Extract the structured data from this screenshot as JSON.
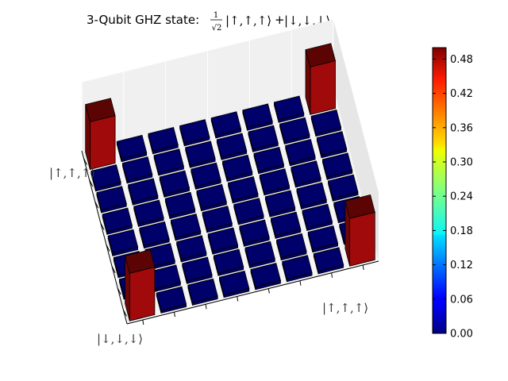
{
  "chart_data": {
    "type": "bar3d",
    "title": {
      "prefix": "3-Qubit GHZ state: ",
      "frac_num": "1",
      "frac_den": "√2",
      "ket_a": "|↑,↑,↑⟩",
      "plus": "+",
      "ket_b": "|↓,↓,↓⟩"
    },
    "matrix_size": 8,
    "nonzero_elements": [
      {
        "row": 0,
        "col": 0,
        "value": 0.5
      },
      {
        "row": 0,
        "col": 7,
        "value": 0.5
      },
      {
        "row": 7,
        "col": 0,
        "value": 0.5
      },
      {
        "row": 7,
        "col": 7,
        "value": 0.5
      }
    ],
    "default_value": 0.0,
    "axis_tick_labels": {
      "row_first": "|↑,↑,↑⟩",
      "row_last": "|↓,↓,↓⟩",
      "col_first": "|↑,↑,↑⟩"
    },
    "colormap": "jet",
    "colorbar": {
      "min": 0.0,
      "max": 0.5,
      "ticks": [
        "0.00",
        "0.06",
        "0.12",
        "0.18",
        "0.24",
        "0.30",
        "0.36",
        "0.42",
        "0.48"
      ]
    },
    "colors": {
      "bar_high": "#a00a0a",
      "bar_high_top": "#5c0404",
      "bar_low": "#00006a",
      "pane": "#f0f0f0"
    }
  }
}
